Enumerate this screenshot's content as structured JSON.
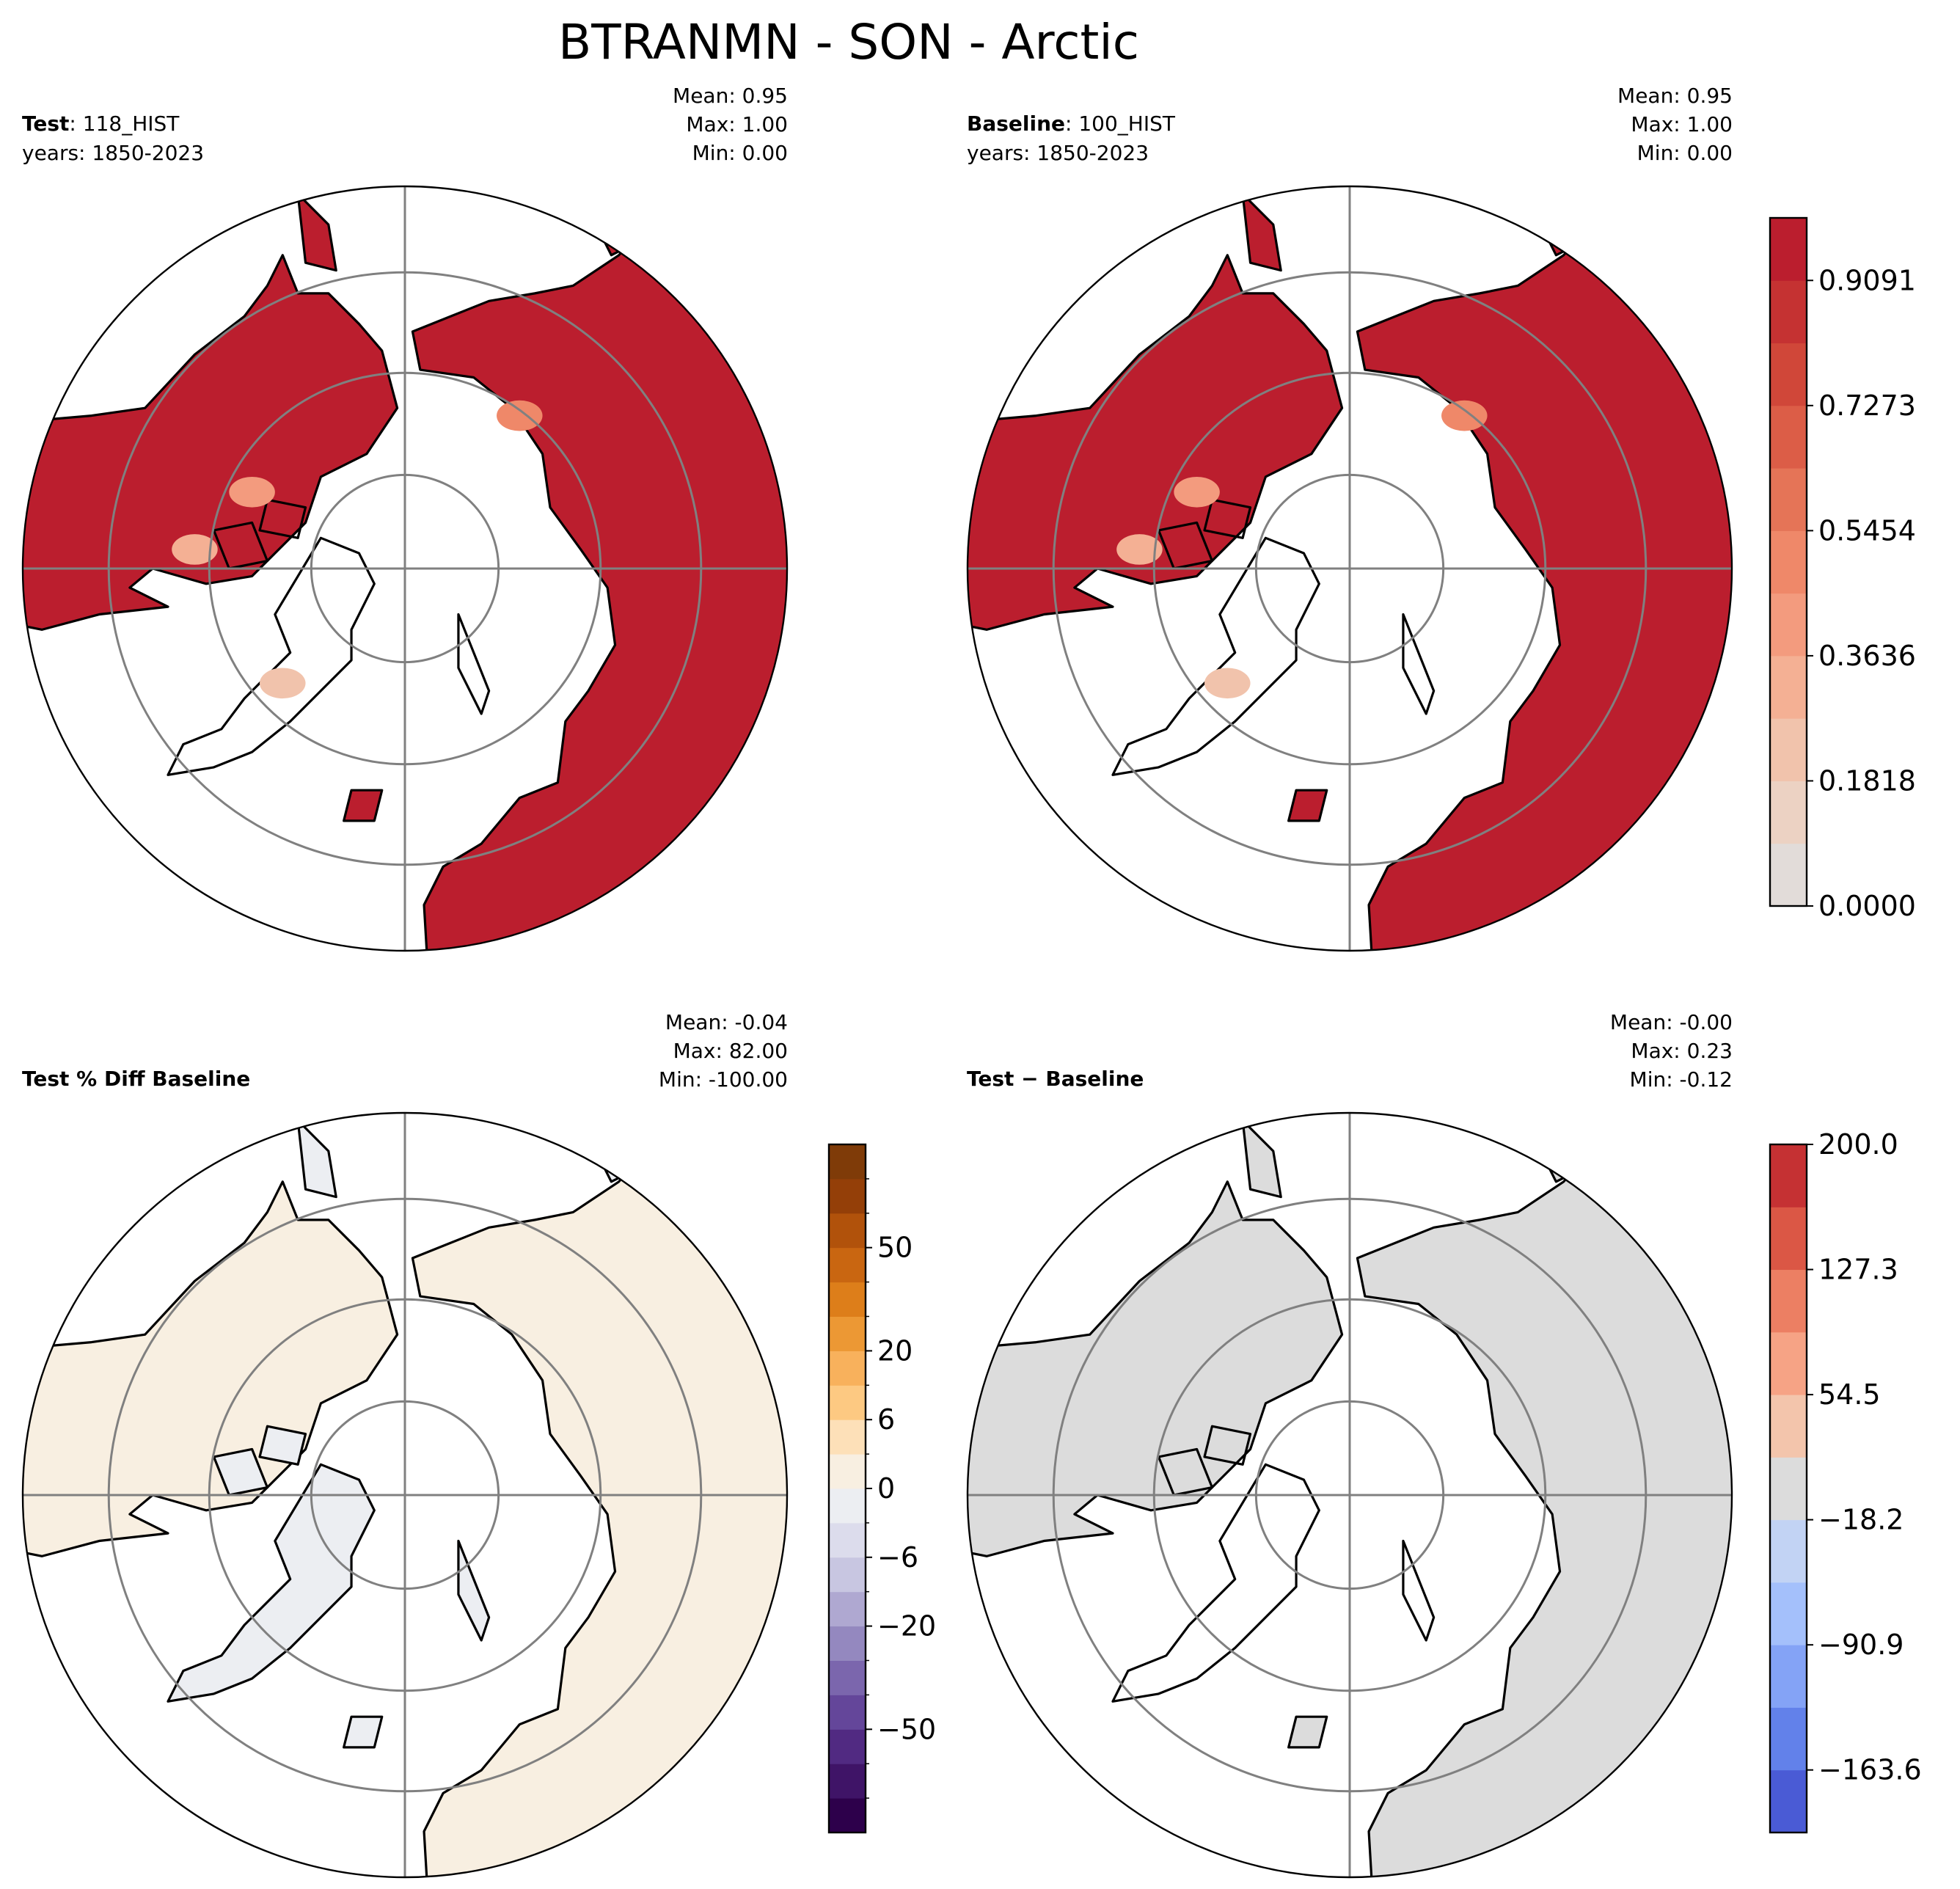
{
  "figure_title": "BTRANMN - SON - Arctic",
  "colors": {
    "land_full": "#bb1e2e",
    "coast": "#000000",
    "grid": "#808080",
    "diff_land": "#eceef2",
    "diff_warm": "#f8efe1",
    "abs_diff_land": "#dcdcdc"
  },
  "panels": {
    "test": {
      "label_bold": "Test",
      "label_rest": ": 118_HIST",
      "years": "years: 1850-2023",
      "stats": [
        "Mean:  0.95",
        "Max:  1.00",
        "Min:  0.00"
      ]
    },
    "baseline": {
      "label_bold": "Baseline",
      "label_rest": ": 100_HIST",
      "years": "years: 1850-2023",
      "stats": [
        "Mean:  0.95",
        "Max:  1.00",
        "Min:  0.00"
      ]
    },
    "pct_diff": {
      "label_bold": "Test % Diff Baseline",
      "stats": [
        "Mean: -0.04",
        "Max: 82.00",
        "Min: -100.00"
      ]
    },
    "abs_diff": {
      "label_bold": "Test − Baseline",
      "stats": [
        "Mean: -0.00",
        "Max:  0.23",
        "Min: -0.12"
      ]
    }
  },
  "chart_data": [
    {
      "type": "heatmap",
      "title": "Test: 118_HIST",
      "projection": "north polar stereographic",
      "summary": {
        "mean": 0.95,
        "max": 1.0,
        "min": 0.0
      },
      "colorbar": {
        "ticks": [
          "0.9091",
          "0.7273",
          "0.5454",
          "0.3636",
          "0.1818",
          "0.0000"
        ],
        "range": [
          0.0,
          1.0
        ],
        "levels": 11,
        "colors": [
          "#e2dcd9",
          "#ecd2c3",
          "#f1c3ac",
          "#f4b094",
          "#f39b7e",
          "#ef8869",
          "#e57457",
          "#dc5d47",
          "#d04739",
          "#c53232",
          "#bb1e2e"
        ]
      }
    },
    {
      "type": "heatmap",
      "title": "Baseline: 100_HIST",
      "projection": "north polar stereographic",
      "summary": {
        "mean": 0.95,
        "max": 1.0,
        "min": 0.0
      }
    },
    {
      "type": "heatmap",
      "title": "Test % Diff Baseline",
      "projection": "north polar stereographic",
      "summary": {
        "mean": -0.04,
        "max": 82.0,
        "min": -100.0
      },
      "colorbar": {
        "ticks": [
          "50",
          "20",
          "6",
          "0",
          "−6",
          "−20",
          "−50"
        ],
        "colors": [
          "#2d004b",
          "#3f1467",
          "#512a82",
          "#64469a",
          "#7b66ad",
          "#9488bf",
          "#afa8d1",
          "#c8c6e1",
          "#dcdcec",
          "#eceef2",
          "#f8efe1",
          "#fde0b8",
          "#fdc982",
          "#f8b15c",
          "#ec9834",
          "#dd7e1a",
          "#c96611",
          "#b1520b",
          "#943f08",
          "#7f3b08"
        ]
      }
    },
    {
      "type": "heatmap",
      "title": "Test − Baseline",
      "projection": "north polar stereographic",
      "summary": {
        "mean": -0.0,
        "max": 0.23,
        "min": -0.12
      },
      "colorbar": {
        "ticks": [
          "200.0",
          "127.3",
          "54.5",
          "−18.2",
          "−90.9",
          "−163.6"
        ],
        "range": [
          -200.0,
          200.0
        ],
        "colors": [
          "#4a5bd5",
          "#6281ea",
          "#84a3f6",
          "#a4c0fb",
          "#c2d3f4",
          "#dcdcdc",
          "#f3c5ac",
          "#f6a385",
          "#ec7f63",
          "#db5745",
          "#c53133"
        ]
      }
    }
  ]
}
